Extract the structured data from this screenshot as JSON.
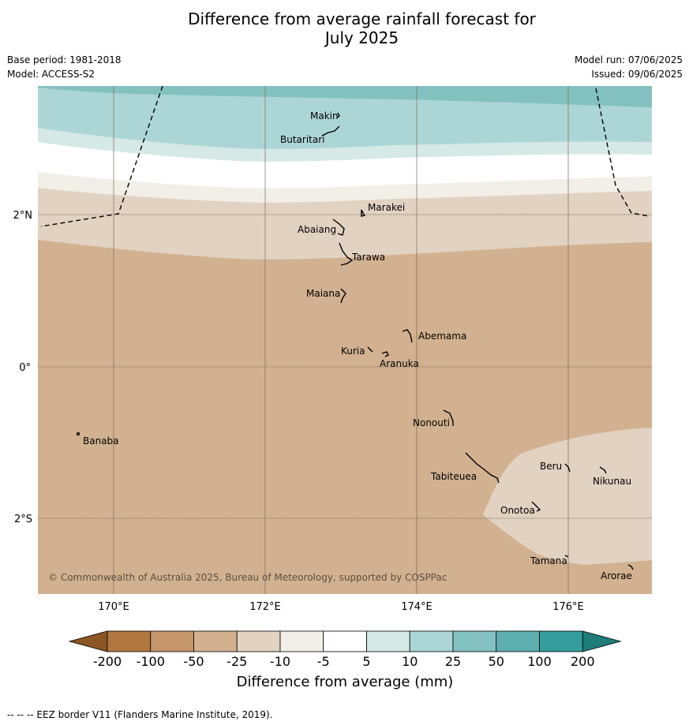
{
  "title_line1": "Difference from average rainfall forecast for",
  "title_line2": "July 2025",
  "base_period": "Base period: 1981-2018",
  "model": "Model: ACCESS-S2",
  "model_run": "Model run: 07/06/2025",
  "issued": "Issued: 09/06/2025",
  "copyright": "© Commonwealth of Australia 2025, Bureau of Meteorology, supported by COSPPac",
  "footer": "--  --  -- EEZ border V11 (Flanders Marine Institute, 2019).",
  "lon_ticks": [
    "170°E",
    "172°E",
    "174°E",
    "176°E"
  ],
  "lat_ticks": [
    "2°N",
    "0°",
    "2°S"
  ],
  "islands": {
    "makin": "Makin",
    "butaritari": "Butaritari",
    "marakei": "Marakei",
    "abaiang": "Abaiang",
    "tarawa": "Tarawa",
    "maiana": "Maiana",
    "abemama": "Abemama",
    "kuria": "Kuria",
    "aranuka": "Aranuka",
    "nonouti": "Nonouti",
    "banaba": "Banaba",
    "beru": "Beru",
    "nikunau": "Nikunau",
    "tabiteuea": "Tabiteuea",
    "onotoa": "Onotoa",
    "tamana": "Tamana",
    "arorae": "Arorae"
  },
  "colorbar": {
    "title": "Difference from average (mm)",
    "labels": [
      "-200",
      "-100",
      "-50",
      "-25",
      "-10",
      "-5",
      "5",
      "10",
      "25",
      "50",
      "100",
      "200"
    ],
    "colors": [
      "#8c5524",
      "#b07840",
      "#c4966a",
      "#d2b191",
      "#e2d2c2",
      "#f2eee8",
      "#ffffff",
      "#d5e9e7",
      "#acd6d5",
      "#83c1c0",
      "#5cafae",
      "#359e9c",
      "#1e7c79"
    ]
  }
}
